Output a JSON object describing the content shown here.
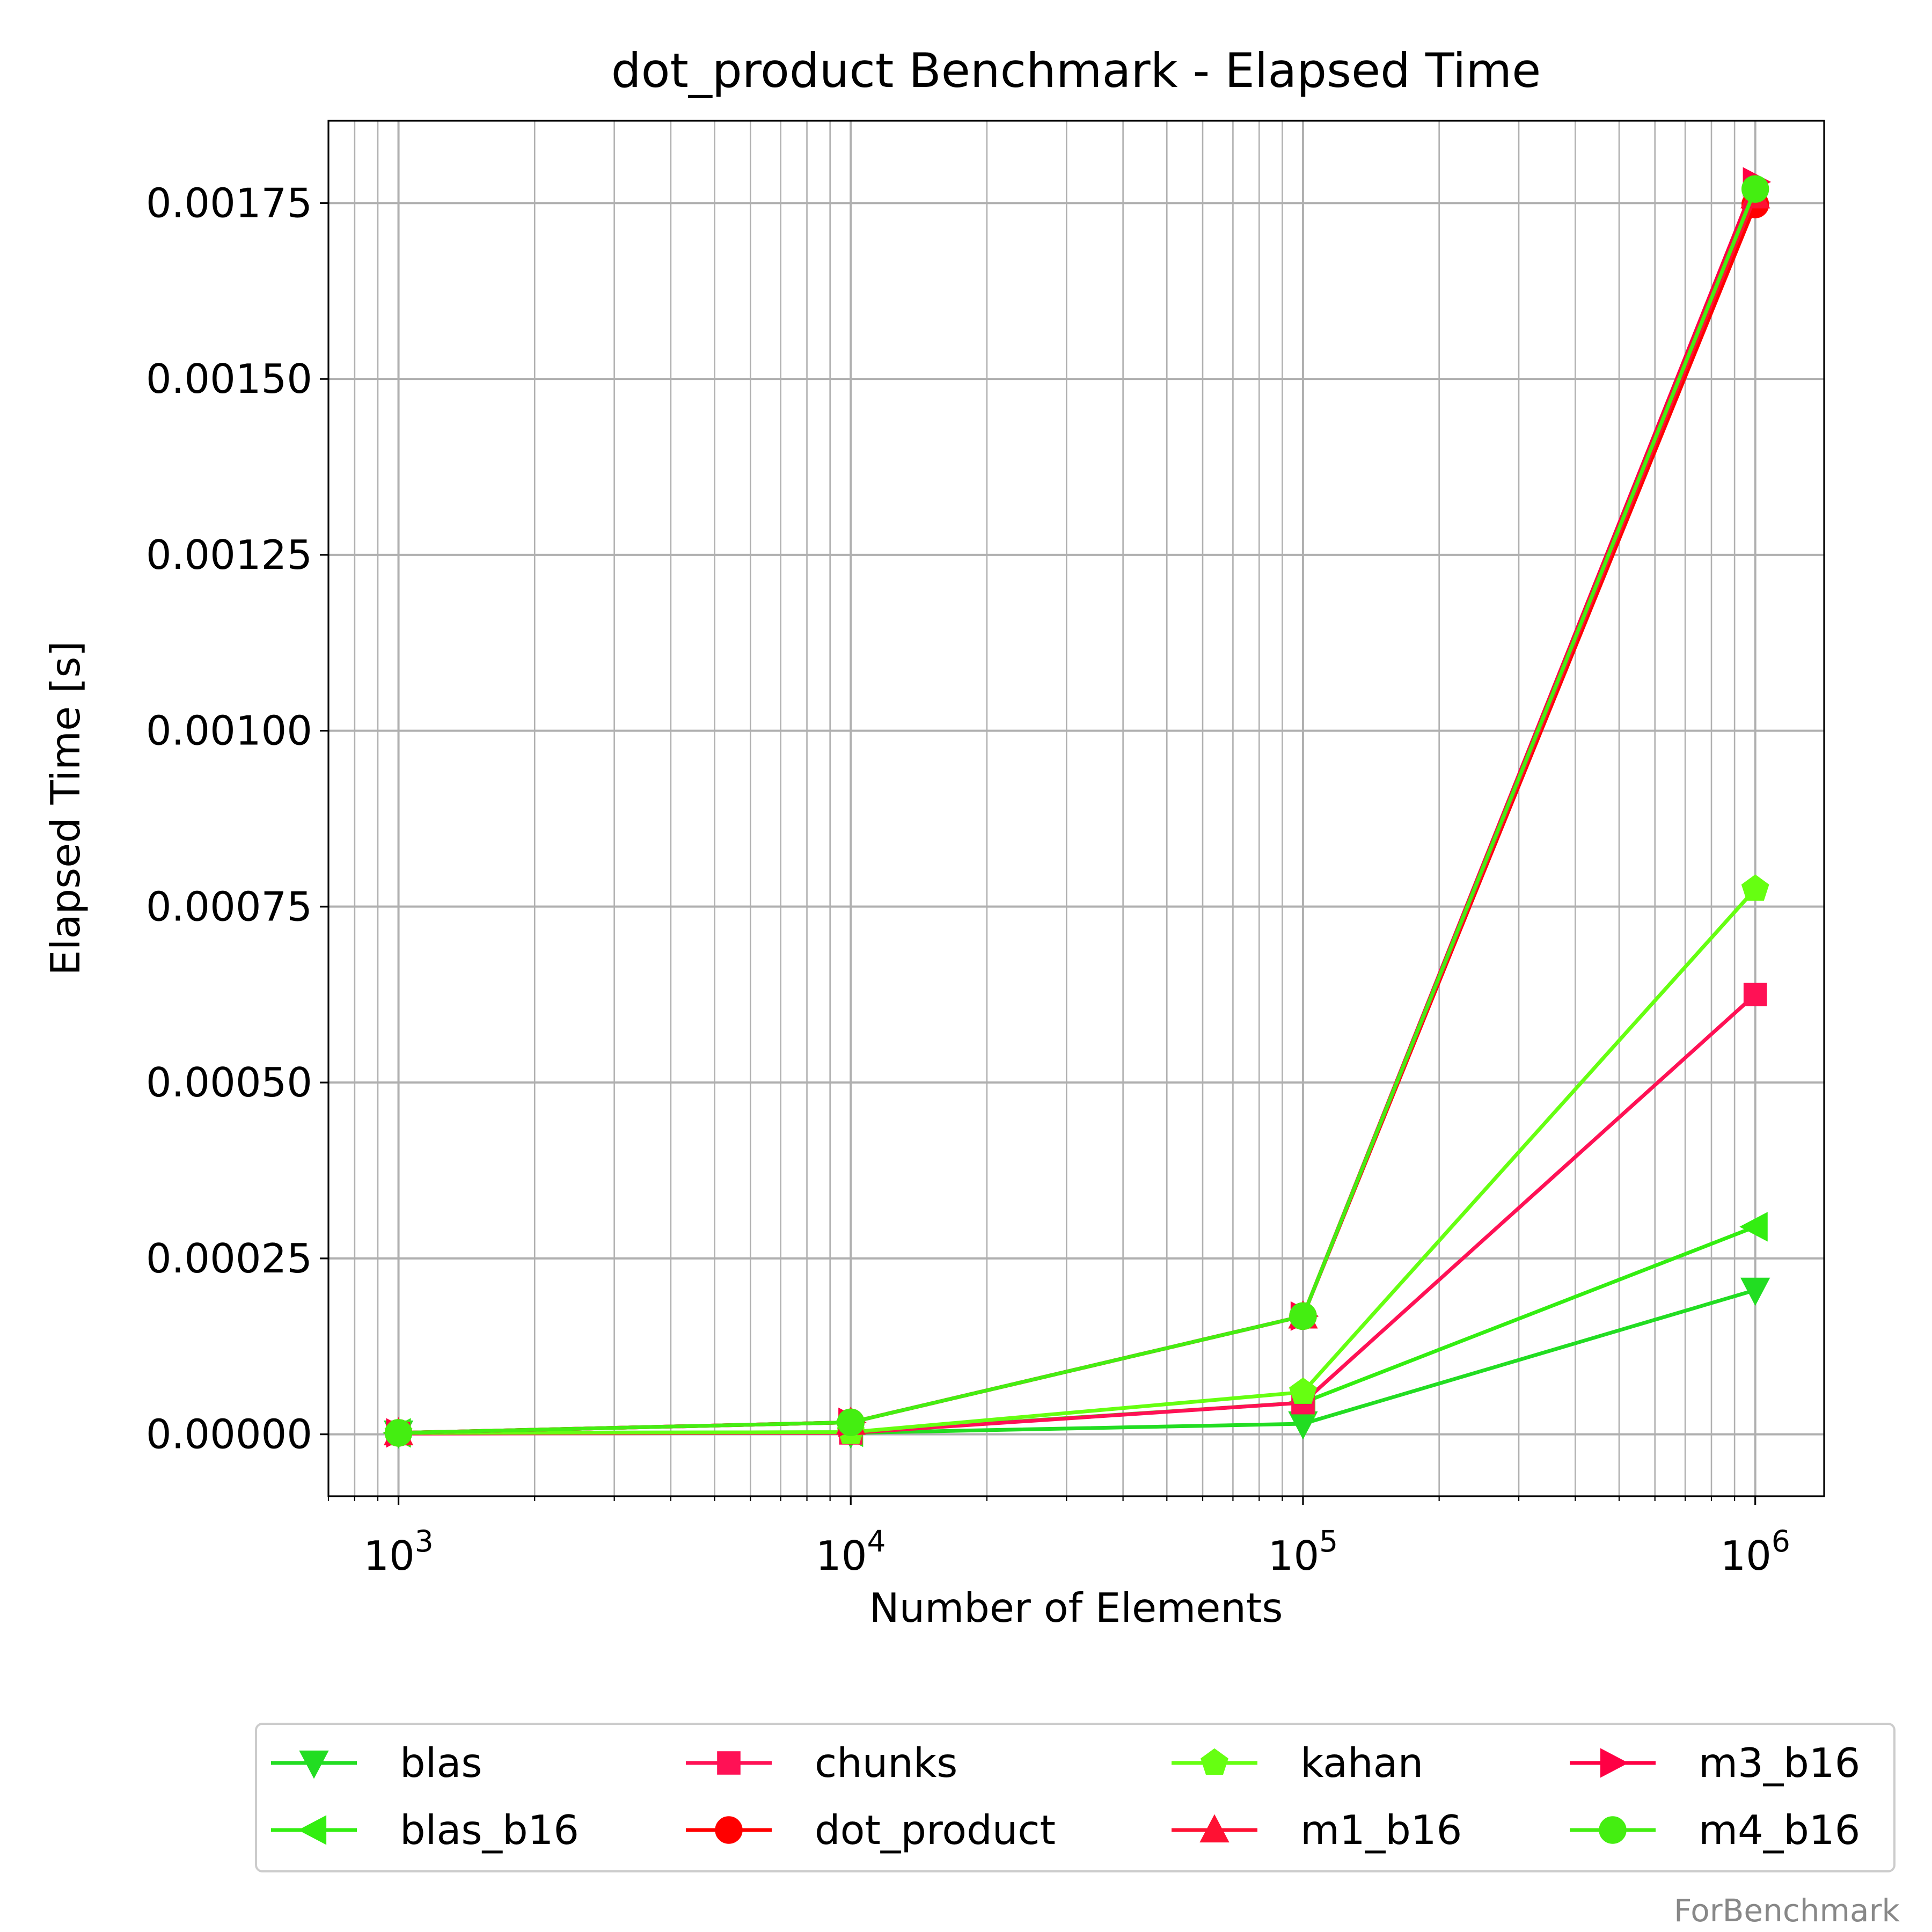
{
  "chart_data": {
    "type": "line",
    "title": "dot_product Benchmark - Elapsed Time",
    "xlabel": "Number of Elements",
    "ylabel": "Elapsed Time [s]",
    "x_scale": "log",
    "x": [
      1000,
      10000,
      100000,
      1000000
    ],
    "x_tick_labels": [
      {
        "base": "10",
        "exp": "3"
      },
      {
        "base": "10",
        "exp": "4"
      },
      {
        "base": "10",
        "exp": "5"
      },
      {
        "base": "10",
        "exp": "6"
      }
    ],
    "xlim": [
      700,
      1420000
    ],
    "ylim": [
      -8.8e-05,
      0.001867
    ],
    "y_ticks": [
      0.0,
      0.00025,
      0.0005,
      0.00075,
      0.001,
      0.00125,
      0.0015,
      0.00175
    ],
    "y_tick_labels": [
      "0.00000",
      "0.00025",
      "0.00050",
      "0.00075",
      "0.00100",
      "0.00125",
      "0.00150",
      "0.00175"
    ],
    "grid": true,
    "legend_placement": "bottom-outside",
    "series": [
      {
        "name": "blas",
        "color": "#22dd22",
        "marker": "triangle-down",
        "values": [
          2e-06,
          2e-06,
          1.5e-05,
          0.000205
        ]
      },
      {
        "name": "blas_b16",
        "color": "#33ee11",
        "marker": "triangle-left",
        "values": [
          2e-06,
          3e-06,
          4.5e-05,
          0.000295
        ]
      },
      {
        "name": "chunks",
        "color": "#ff1155",
        "marker": "square",
        "values": [
          1e-06,
          2e-06,
          4.5e-05,
          0.000625
        ]
      },
      {
        "name": "dot_product",
        "color": "#ff0000",
        "marker": "circle",
        "values": [
          2e-06,
          1.7e-05,
          0.000168,
          0.001748
        ]
      },
      {
        "name": "kahan",
        "color": "#66ff11",
        "marker": "pentagon",
        "values": [
          2e-06,
          3e-06,
          6e-05,
          0.000775
        ]
      },
      {
        "name": "m1_b16",
        "color": "#ff1133",
        "marker": "triangle-up",
        "values": [
          2e-06,
          1.7e-05,
          0.000168,
          0.00176
        ]
      },
      {
        "name": "m3_b16",
        "color": "#ff0044",
        "marker": "triangle-right",
        "values": [
          2e-06,
          1.7e-05,
          0.000168,
          0.00178
        ]
      },
      {
        "name": "m4_b16",
        "color": "#44ee11",
        "marker": "circle",
        "values": [
          2e-06,
          1.7e-05,
          0.000168,
          0.00177
        ]
      }
    ]
  },
  "watermark": "ForBenchmark"
}
